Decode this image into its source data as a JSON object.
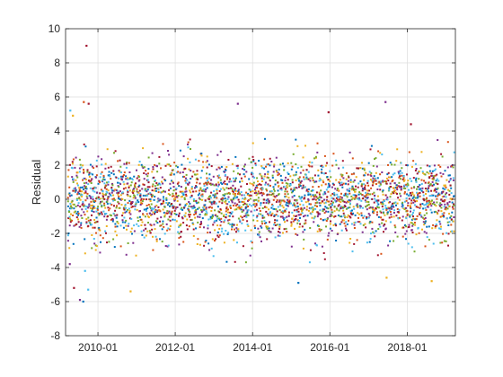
{
  "chart_data": {
    "type": "scatter",
    "title": "",
    "xlabel": "",
    "ylabel": "Residual",
    "xlim": [
      "2009-03-01",
      "2019-04-01"
    ],
    "ylim": [
      -8,
      10
    ],
    "yticks": [
      -8,
      -6,
      -4,
      -2,
      0,
      2,
      4,
      6,
      8,
      10
    ],
    "xticks": [
      {
        "value": "2010-01-01",
        "label": "2010-01"
      },
      {
        "value": "2012-01-01",
        "label": "2012-01"
      },
      {
        "value": "2014-01-01",
        "label": "2014-01"
      },
      {
        "value": "2016-01-01",
        "label": "2016-01"
      },
      {
        "value": "2018-01-01",
        "label": "2018-01"
      }
    ],
    "grid": true,
    "marker": "dot",
    "series_colors": [
      "#0072BD",
      "#D95319",
      "#EDB120",
      "#7E2F8E",
      "#77AC30",
      "#4DBEEE",
      "#A2142F"
    ],
    "series_count": 7,
    "typical_spread_sd": 1.2,
    "outliers": [
      {
        "x": "2009-09-15",
        "y": 9.0,
        "color": "#A2142F"
      },
      {
        "x": "2009-08-20",
        "y": 5.7,
        "color": "#D95319"
      },
      {
        "x": "2009-10-05",
        "y": 5.6,
        "color": "#A2142F"
      },
      {
        "x": "2009-05-10",
        "y": 4.9,
        "color": "#EDB120"
      },
      {
        "x": "2009-04-15",
        "y": 5.2,
        "color": "#4DBEEE"
      },
      {
        "x": "2013-08-15",
        "y": 5.6,
        "color": "#7E2F8E"
      },
      {
        "x": "2015-12-20",
        "y": 5.1,
        "color": "#A2142F"
      },
      {
        "x": "2017-06-10",
        "y": 5.7,
        "color": "#7E2F8E"
      },
      {
        "x": "2018-02-05",
        "y": 4.4,
        "color": "#A2142F"
      },
      {
        "x": "2009-07-15",
        "y": -5.9,
        "color": "#7E2F8E"
      },
      {
        "x": "2009-08-15",
        "y": -6.0,
        "color": "#0072BD"
      },
      {
        "x": "2009-10-01",
        "y": -5.3,
        "color": "#4DBEEE"
      },
      {
        "x": "2010-11-05",
        "y": -5.4,
        "color": "#EDB120"
      },
      {
        "x": "2009-05-20",
        "y": -5.2,
        "color": "#A2142F"
      },
      {
        "x": "2015-03-10",
        "y": -4.9,
        "color": "#0072BD"
      },
      {
        "x": "2017-06-20",
        "y": -4.6,
        "color": "#EDB120"
      },
      {
        "x": "2018-08-20",
        "y": -4.8,
        "color": "#EDB120"
      },
      {
        "x": "2009-09-01",
        "y": -4.2,
        "color": "#4DBEEE"
      },
      {
        "x": "2009-04-10",
        "y": -3.8,
        "color": "#7E2F8E"
      }
    ]
  }
}
